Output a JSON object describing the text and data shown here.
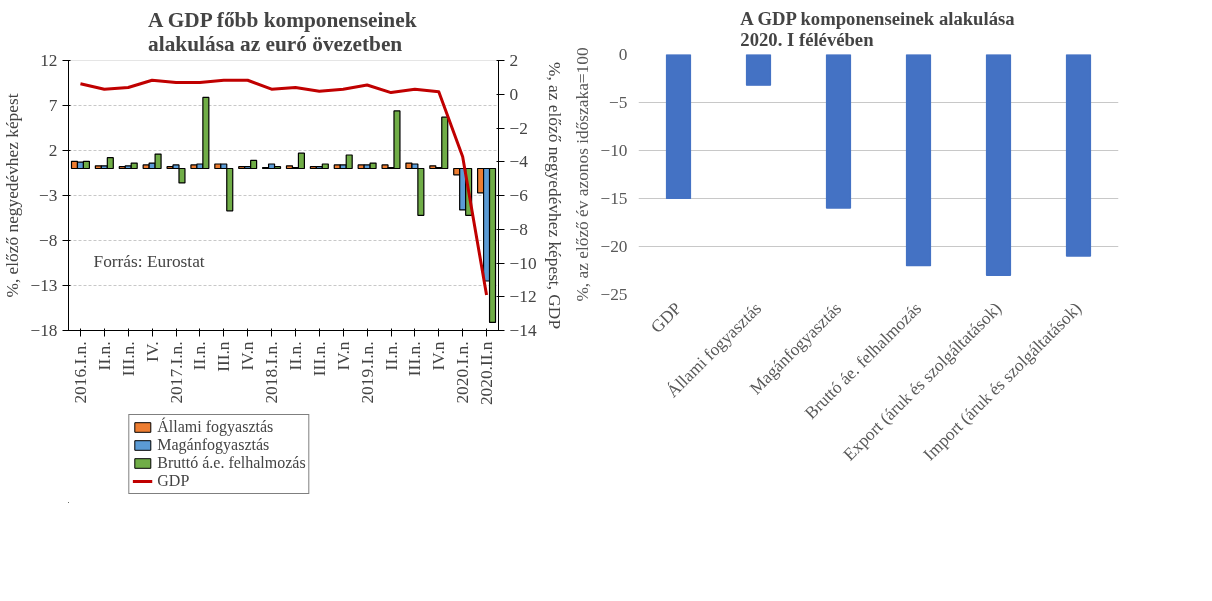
{
  "chart_data": [
    {
      "type": "bar",
      "title": "A GDP főbb komponenseinek\nalakulása az euró övezetben",
      "ylabel": "%, előző negyedévhez képest",
      "y2label": "%, az előző negyedévhez képest, GDP",
      "categories": [
        "2016.I.n.",
        "II.n.",
        "III.n.",
        "IV.",
        "2017.I.n.",
        "II.n.",
        "III.n",
        "IV.n",
        "2018.I.n.",
        "II.n.",
        "III.n.",
        "IV.n",
        "2019.I.n.",
        "II.n.",
        "III.n.",
        "IV.n",
        "2020.I.n.",
        "2020.II.n"
      ],
      "series": [
        {
          "name": "Állami fogyasztás",
          "color": "#ed7d31",
          "values": [
            0.8,
            0.3,
            0.2,
            0.4,
            0.2,
            0.4,
            0.5,
            0.2,
            0.1,
            0.3,
            0.2,
            0.4,
            0.4,
            0.4,
            0.6,
            0.3,
            -0.7,
            -2.7
          ]
        },
        {
          "name": "Magánfogyasztás",
          "color": "#5b9bd5",
          "values": [
            0.7,
            0.3,
            0.3,
            0.6,
            0.4,
            0.5,
            0.5,
            0.2,
            0.5,
            0.1,
            0.2,
            0.4,
            0.4,
            0.1,
            0.5,
            0.1,
            -4.6,
            -12.5
          ]
        },
        {
          "name": "Bruttó á.e. felhalmozás",
          "color": "#70ad47",
          "values": [
            0.8,
            1.2,
            0.6,
            1.6,
            -1.6,
            7.9,
            -4.7,
            0.9,
            0.2,
            1.7,
            0.5,
            1.5,
            0.6,
            6.4,
            -5.2,
            5.7,
            -5.2,
            -17.1
          ]
        },
        {
          "name": "GDP",
          "type": "line",
          "axis": "y2",
          "color": "#c00000",
          "values": [
            0.62,
            0.3,
            0.4,
            0.83,
            0.7,
            0.7,
            0.83,
            0.83,
            0.3,
            0.4,
            0.18,
            0.3,
            0.55,
            0.1,
            0.3,
            0.15,
            -3.7,
            -11.9
          ]
        }
      ],
      "ylim": [
        -18,
        12
      ],
      "yticks": [
        12,
        7,
        2,
        -3,
        -8,
        -13,
        -18
      ],
      "y2lim": [
        -14,
        2
      ],
      "y2ticks": [
        2,
        0,
        -2,
        -4,
        -6,
        -8,
        -10,
        -12,
        -14
      ],
      "grid": "y",
      "legend": "bottom",
      "annotations": [
        "Forrás: Eurostat"
      ]
    },
    {
      "type": "bar",
      "title": "A GDP komponenseinek alakulása\n2020. I félévében",
      "ylabel": "%, az előző év azonos időszaka=100",
      "categories": [
        "GDP",
        "Állami fogyasztás",
        "Magánfogyasztás",
        "Bruttó áe. felhalmozás",
        "Export (áruk és szolgáltatások)",
        "Import (áruk és szolgáltatások)"
      ],
      "series": [
        {
          "color": "#4472c4",
          "values": [
            -15,
            -3.2,
            -16,
            -22,
            -23,
            -21
          ]
        }
      ],
      "ylim": [
        -25,
        0
      ],
      "yticks": [
        0,
        -5,
        -10,
        -15,
        -20,
        -25
      ],
      "grid": "y"
    }
  ]
}
